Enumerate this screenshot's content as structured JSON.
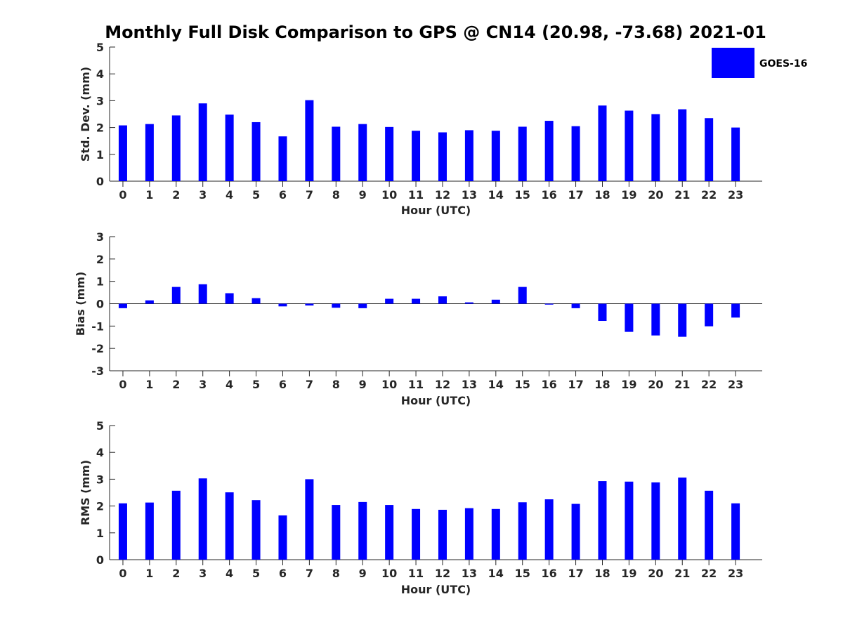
{
  "figure": {
    "title": "Monthly Full Disk Comparison to GPS @ CN14 (20.98, -73.68) 2021-01",
    "legend": {
      "label": "GOES-16",
      "color": "#0000ff",
      "placement": "top-right"
    }
  },
  "chart_data": [
    {
      "type": "bar",
      "ylabel": "Std. Dev. (mm)",
      "xlabel": "Hour (UTC)",
      "ylim": [
        0,
        5
      ],
      "yticks": [
        0,
        1,
        2,
        3,
        4,
        5
      ],
      "categories": [
        "0",
        "1",
        "2",
        "3",
        "4",
        "5",
        "6",
        "7",
        "8",
        "9",
        "10",
        "11",
        "12",
        "13",
        "14",
        "15",
        "16",
        "17",
        "18",
        "19",
        "20",
        "21",
        "22",
        "23"
      ],
      "series": [
        {
          "name": "GOES-16",
          "color": "#0000ff",
          "values": [
            2.08,
            2.13,
            2.45,
            2.9,
            2.48,
            2.2,
            1.67,
            3.02,
            2.03,
            2.13,
            2.02,
            1.88,
            1.82,
            1.9,
            1.88,
            2.03,
            2.25,
            2.05,
            2.82,
            2.63,
            2.5,
            2.68,
            2.35,
            2.0
          ]
        }
      ],
      "grid": false
    },
    {
      "type": "bar",
      "ylabel": "Bias (mm)",
      "xlabel": "Hour (UTC)",
      "ylim": [
        -3,
        3
      ],
      "yticks": [
        -3,
        -2,
        -1,
        0,
        1,
        2,
        3
      ],
      "zero_line": true,
      "categories": [
        "0",
        "1",
        "2",
        "3",
        "4",
        "5",
        "6",
        "7",
        "8",
        "9",
        "10",
        "11",
        "12",
        "13",
        "14",
        "15",
        "16",
        "17",
        "18",
        "19",
        "20",
        "21",
        "22",
        "23"
      ],
      "series": [
        {
          "name": "GOES-16",
          "color": "#0000ff",
          "values": [
            -0.2,
            0.15,
            0.75,
            0.87,
            0.47,
            0.25,
            -0.12,
            -0.08,
            -0.18,
            -0.2,
            0.22,
            0.22,
            0.33,
            0.06,
            0.18,
            0.75,
            -0.04,
            -0.2,
            -0.77,
            -1.26,
            -1.42,
            -1.48,
            -1.01,
            -0.62
          ]
        }
      ],
      "grid": false
    },
    {
      "type": "bar",
      "ylabel": "RMS (mm)",
      "xlabel": "Hour (UTC)",
      "ylim": [
        0,
        5
      ],
      "yticks": [
        0,
        1,
        2,
        3,
        4,
        5
      ],
      "categories": [
        "0",
        "1",
        "2",
        "3",
        "4",
        "5",
        "6",
        "7",
        "8",
        "9",
        "10",
        "11",
        "12",
        "13",
        "14",
        "15",
        "16",
        "17",
        "18",
        "19",
        "20",
        "21",
        "22",
        "23"
      ],
      "series": [
        {
          "name": "GOES-16",
          "color": "#0000ff",
          "values": [
            2.1,
            2.13,
            2.57,
            3.03,
            2.51,
            2.22,
            1.65,
            3.0,
            2.04,
            2.15,
            2.04,
            1.89,
            1.86,
            1.92,
            1.89,
            2.14,
            2.25,
            2.08,
            2.93,
            2.91,
            2.88,
            3.06,
            2.57,
            2.1
          ]
        }
      ],
      "grid": false
    }
  ]
}
